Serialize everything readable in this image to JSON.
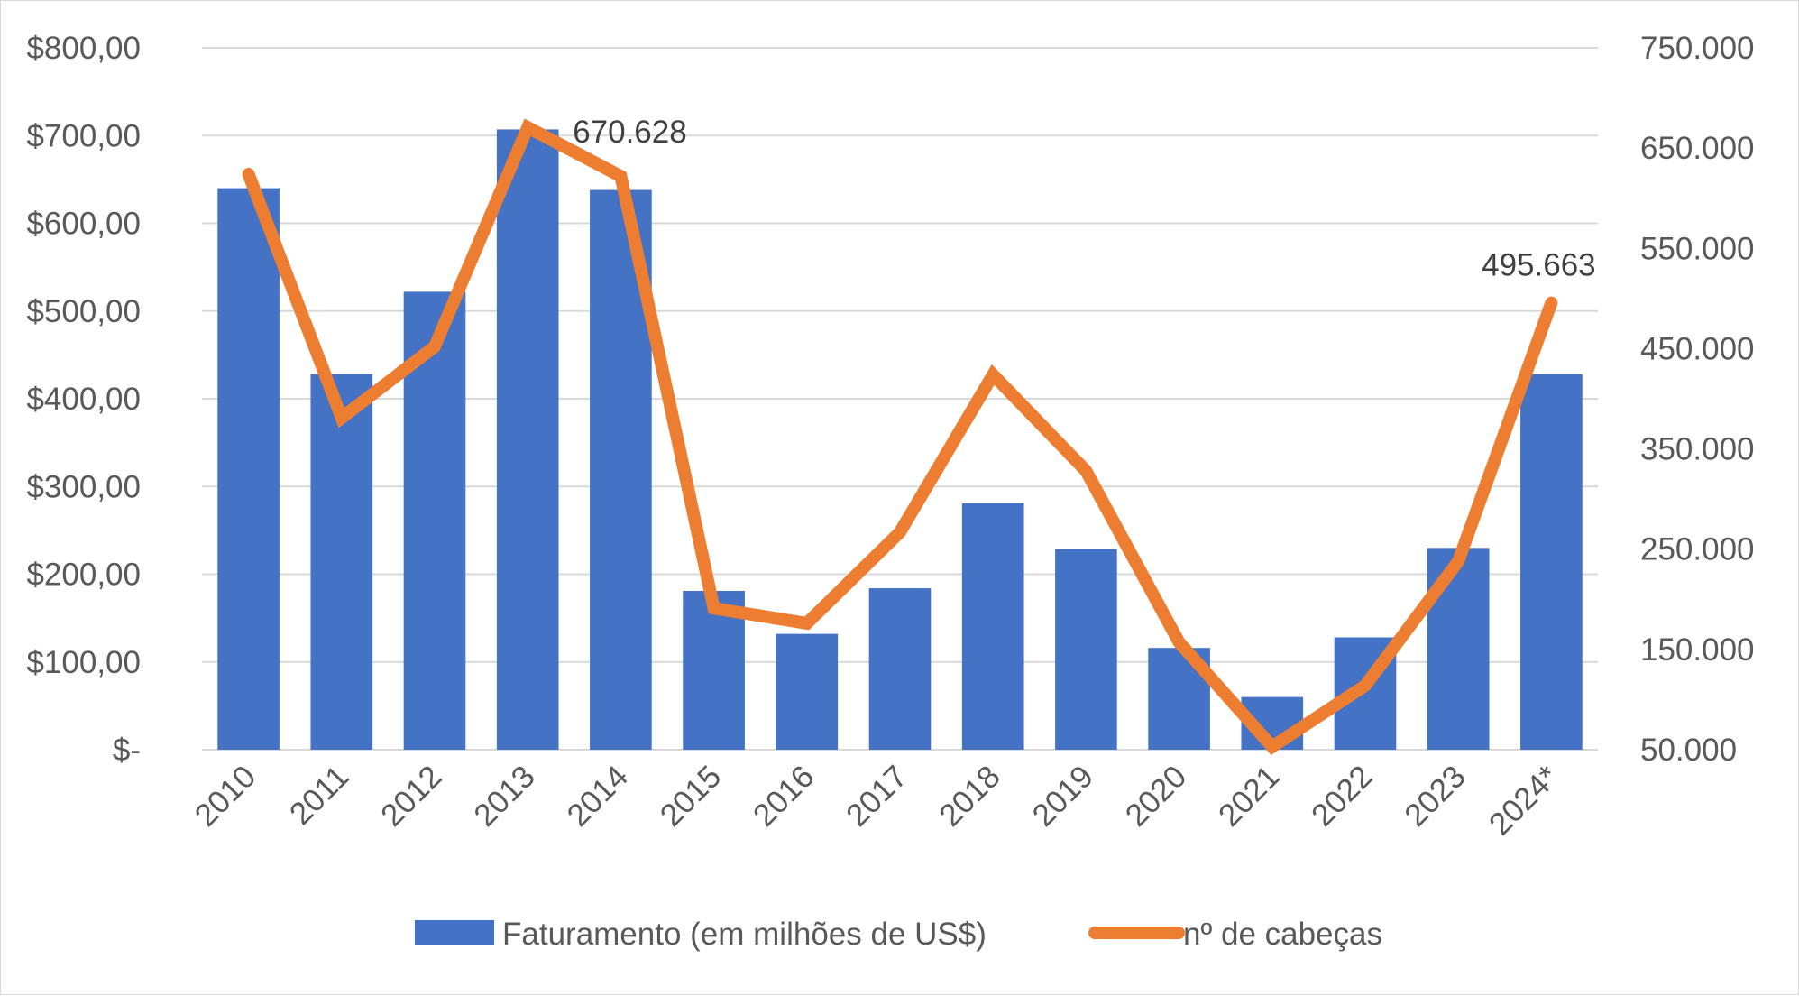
{
  "chart_data": {
    "type": "bar",
    "categories": [
      "2010",
      "2011",
      "2012",
      "2013",
      "2014",
      "2015",
      "2016",
      "2017",
      "2018",
      "2019",
      "2020",
      "2021",
      "2022",
      "2023",
      "2024*"
    ],
    "series": [
      {
        "name": "Faturamento (em milhões de US$)",
        "type": "bar",
        "axis": "left",
        "color": "#4472C4",
        "values": [
          640,
          428,
          522,
          707,
          638,
          181,
          132,
          184,
          281,
          229,
          116,
          60,
          128,
          230,
          428
        ]
      },
      {
        "name": "nº de cabeças",
        "type": "line",
        "axis": "right",
        "color": "#ED7D31",
        "values": [
          624000,
          381000,
          452000,
          670628,
          622000,
          191000,
          176000,
          267000,
          424000,
          328000,
          157000,
          53000,
          114000,
          238000,
          495663
        ]
      }
    ],
    "left_axis": {
      "ylim": [
        0,
        800
      ],
      "ticks": [
        0,
        100,
        200,
        300,
        400,
        500,
        600,
        700,
        800
      ],
      "tick_labels": [
        "$-",
        "$100,00",
        "$200,00",
        "$300,00",
        "$400,00",
        "$500,00",
        "$600,00",
        "$700,00",
        "$800,00"
      ]
    },
    "right_axis": {
      "ylim": [
        50000,
        750000
      ],
      "ticks": [
        50000,
        150000,
        250000,
        350000,
        450000,
        550000,
        650000,
        750000
      ],
      "tick_labels": [
        "50.000",
        "150.000",
        "250.000",
        "350.000",
        "450.000",
        "550.000",
        "650.000",
        "750.000"
      ]
    },
    "data_labels": [
      {
        "series": 1,
        "index": 3,
        "text": "670.628"
      },
      {
        "series": 1,
        "index": 14,
        "text": "495.663"
      }
    ],
    "grid": true,
    "legend_position": "bottom",
    "title": "",
    "xlabel": "",
    "ylabel": ""
  }
}
